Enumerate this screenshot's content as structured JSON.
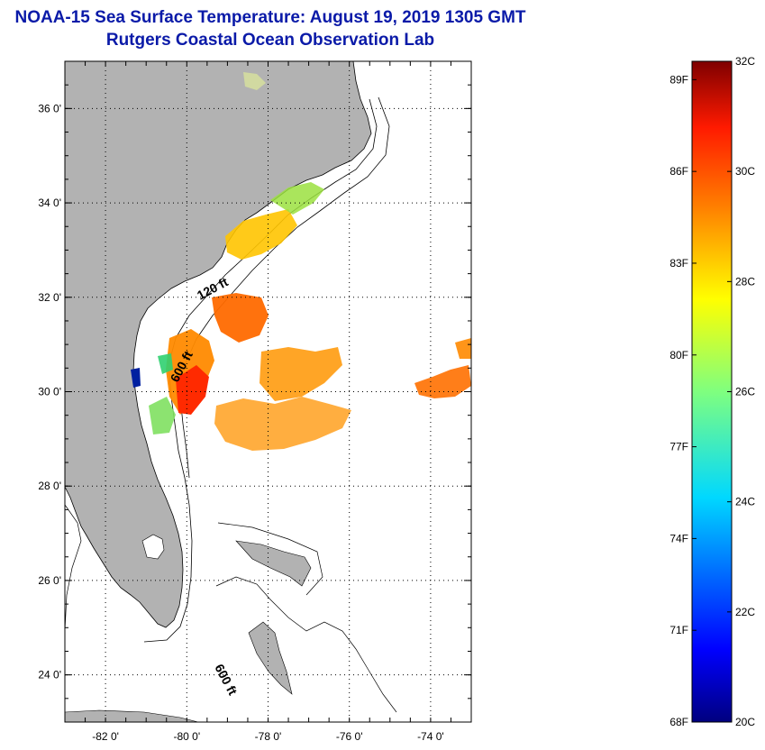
{
  "title": {
    "line1": "NOAA-15 Sea Surface Temperature:  August 19, 2019 1305 GMT",
    "line2": "Rutgers Coastal Ocean Observation Lab"
  },
  "map": {
    "lon_range": [
      -83,
      -73
    ],
    "lat_range": [
      23,
      37
    ],
    "lat_ticks": [
      {
        "value": 36,
        "label": "36 0'"
      },
      {
        "value": 34,
        "label": "34 0'"
      },
      {
        "value": 32,
        "label": "32 0'"
      },
      {
        "value": 30,
        "label": "30 0'"
      },
      {
        "value": 28,
        "label": "28 0'"
      },
      {
        "value": 26,
        "label": "26 0'"
      },
      {
        "value": 24,
        "label": "24 0'"
      }
    ],
    "lon_ticks": [
      {
        "value": -82,
        "label": "-82 0'"
      },
      {
        "value": -80,
        "label": "-80 0'"
      },
      {
        "value": -78,
        "label": "-78 0'"
      },
      {
        "value": -76,
        "label": "-76 0'"
      },
      {
        "value": -74,
        "label": "-74 0'"
      }
    ],
    "contour_labels": {
      "c120": "120 ft",
      "c600a": "600 ft",
      "c600b": "600 ft"
    },
    "colors": {
      "land": "#b2b2b2",
      "ocean": "#ffffff",
      "grid": "#000000"
    }
  },
  "colorbar": {
    "min_c": 20,
    "max_c": 32,
    "fahrenheit_labels": [
      {
        "value": 89,
        "label": "89F"
      },
      {
        "value": 86,
        "label": "86F"
      },
      {
        "value": 83,
        "label": "83F"
      },
      {
        "value": 80,
        "label": "80F"
      },
      {
        "value": 77,
        "label": "77F"
      },
      {
        "value": 74,
        "label": "74F"
      },
      {
        "value": 71,
        "label": "71F"
      },
      {
        "value": 68,
        "label": "68F"
      }
    ],
    "celsius_labels": [
      {
        "value": 32,
        "label": "32C"
      },
      {
        "value": 30,
        "label": "30C"
      },
      {
        "value": 28,
        "label": "28C"
      },
      {
        "value": 26,
        "label": "26C"
      },
      {
        "value": 24,
        "label": "24C"
      },
      {
        "value": 22,
        "label": "22C"
      },
      {
        "value": 20,
        "label": "20C"
      }
    ],
    "stops": [
      "#00007f",
      "#0000ff",
      "#007fff",
      "#00ffff",
      "#7fff7f",
      "#ffff00",
      "#ff7f00",
      "#ff0000",
      "#7f0000"
    ]
  }
}
